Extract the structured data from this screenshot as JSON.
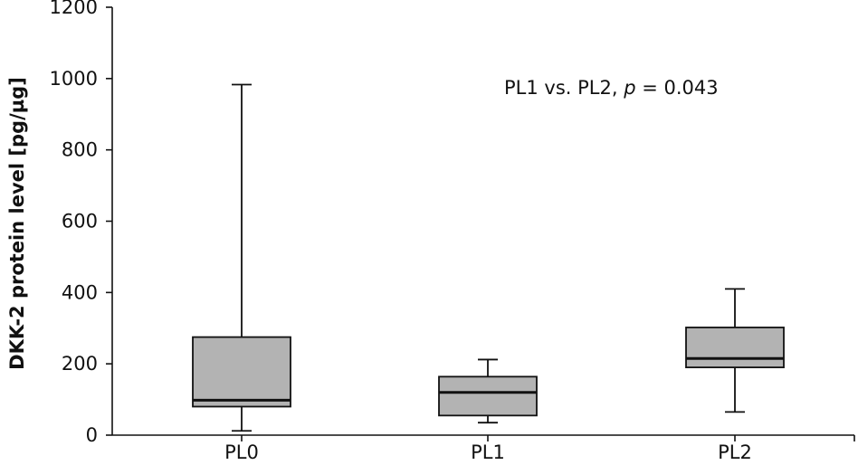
{
  "chart_data": {
    "type": "boxplot",
    "ylabel": "DKK-2 protein level [pg/µg]",
    "ylim": [
      0,
      1200
    ],
    "yticks": [
      0,
      200,
      400,
      600,
      800,
      1000,
      1200
    ],
    "categories": [
      "PL0",
      "PL1",
      "PL2"
    ],
    "boxes": [
      {
        "category": "PL0",
        "min": 12,
        "q1": 80,
        "median": 98,
        "q3": 275,
        "max": 983
      },
      {
        "category": "PL1",
        "min": 35,
        "q1": 55,
        "median": 120,
        "q3": 164,
        "max": 212
      },
      {
        "category": "PL2",
        "min": 65,
        "q1": 190,
        "median": 215,
        "q3": 302,
        "max": 410
      }
    ],
    "annotation": {
      "before": "PL1 vs. PL2, ",
      "italic": "p",
      "after": " = 0.043"
    },
    "box_fill": "#b3b3b3",
    "line_color": "#111111",
    "grid": false,
    "legend": "none"
  }
}
